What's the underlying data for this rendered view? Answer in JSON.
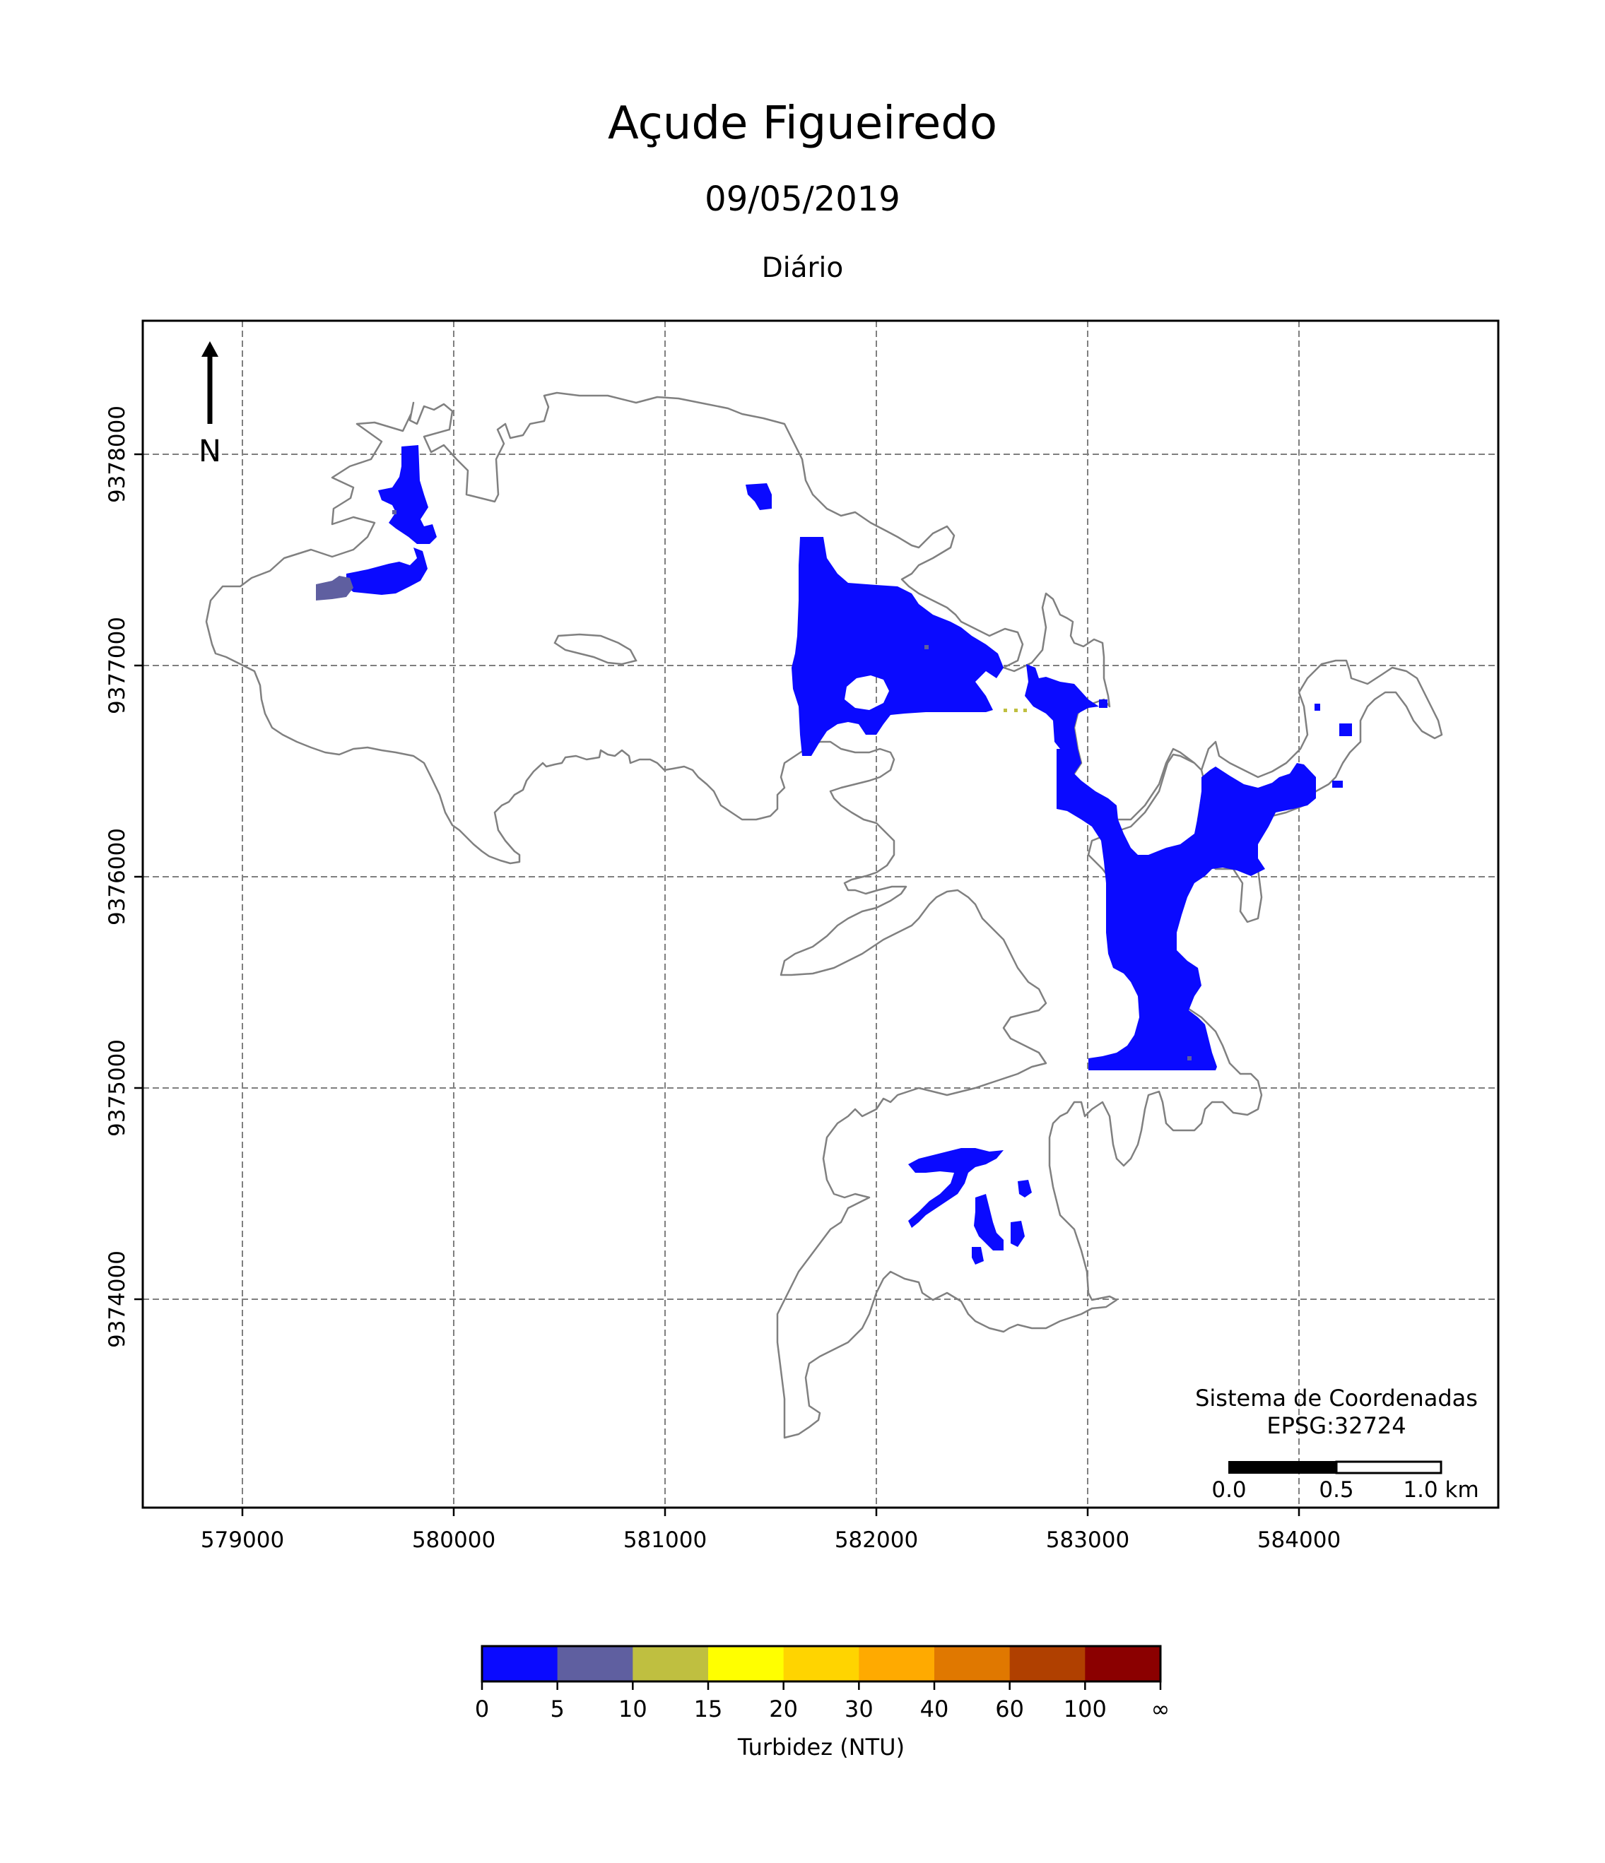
{
  "title": "Açude Figueiredo",
  "date": "09/05/2019",
  "period": "Diário",
  "map": {
    "x_ticks": [
      "579000",
      "580000",
      "581000",
      "582000",
      "583000",
      "584000"
    ],
    "y_ticks": [
      "9378000",
      "9377000",
      "9376000",
      "9375000",
      "9374000"
    ],
    "north_label": "N",
    "crs_title": "Sistema de Coordenadas",
    "crs_code": "EPSG:32724",
    "scale_labels": [
      "0.0",
      "0.5",
      "1.0 km"
    ]
  },
  "colorbar": {
    "label": "Turbidez (NTU)",
    "ticks": [
      "0",
      "5",
      "10",
      "15",
      "20",
      "30",
      "40",
      "60",
      "100",
      "∞"
    ],
    "colors": [
      "#0a0aff",
      "#5f5fa0",
      "#bfbf40",
      "#ffff00",
      "#ffd400",
      "#ffaa00",
      "#e07800",
      "#b04000",
      "#8b0000"
    ]
  },
  "colors": {
    "water_low": "#0a0aff",
    "water_5_10": "#5f5fa0",
    "outline": "#808080",
    "grid": "#7f7f7f"
  }
}
